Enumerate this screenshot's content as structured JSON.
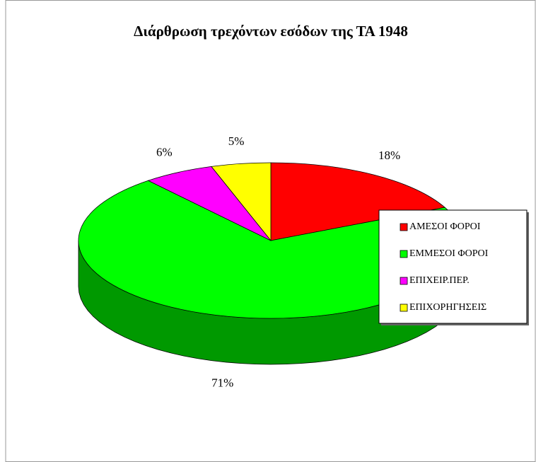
{
  "chart_data": {
    "type": "pie",
    "title": "Διάρθρωση τρεχόντων εσόδων της ΤΑ 1948",
    "categories": [
      "ΑΜΕΣΟΙ ΦΟΡΟΙ",
      "ΕΜΜΕΣΟΙ ΦΟΡΟΙ",
      "ΕΠΙΧΕΙΡ.ΠΕΡ.",
      "ΕΠΙΧΟΡΗΓΗΣΕΙΣ"
    ],
    "values": [
      18,
      71,
      6,
      5
    ],
    "value_labels": [
      "18%",
      "71%",
      "6%",
      "5%"
    ],
    "colors": [
      "#ff0000",
      "#00ff00",
      "#ff00ff",
      "#ffff00"
    ],
    "legend": "right"
  }
}
